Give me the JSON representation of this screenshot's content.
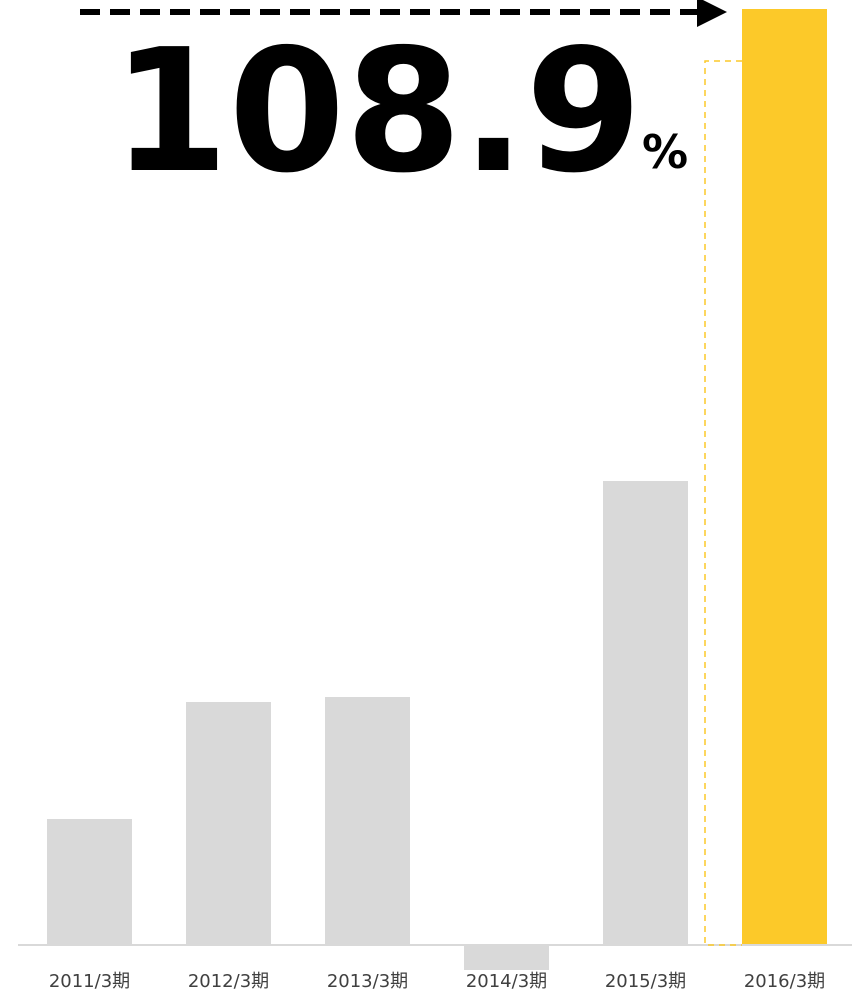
{
  "callout": {
    "value": "108.9",
    "unit": "%"
  },
  "colors": {
    "highlight_bar": "#FCC929",
    "base_bar": "#D9D9D9",
    "axis": "#D9D9D9",
    "arrow": "#000000",
    "guide_dash": "#FCC929",
    "text": "#404040"
  },
  "chart_data": {
    "type": "bar",
    "title": "",
    "xlabel": "",
    "ylabel": "",
    "categories": [
      "2011/3期",
      "2012/3期",
      "2013/3期",
      "2014/3期",
      "2015/3期",
      "2016/3期"
    ],
    "values": [
      12.6,
      24.3,
      24.8,
      -2.5,
      46.4,
      93.6
    ],
    "highlight_index": 5,
    "ylim": [
      -4,
      100
    ],
    "y_axis_shown": false,
    "grid": false,
    "legend": "none"
  }
}
